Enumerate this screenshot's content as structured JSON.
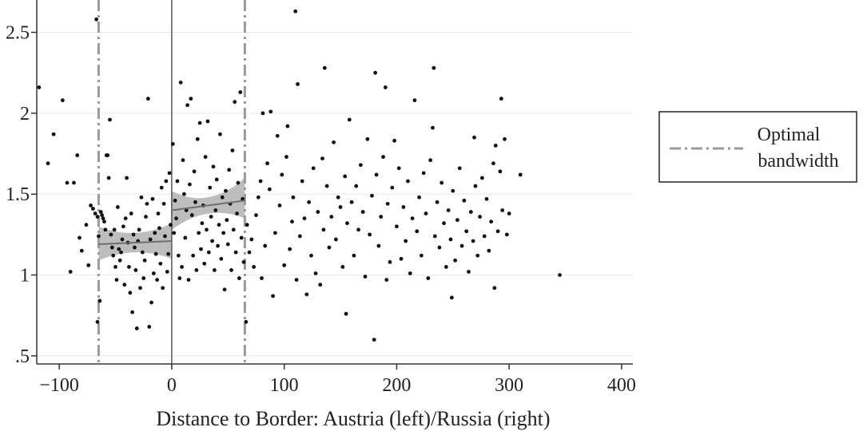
{
  "chart_data": {
    "type": "scatter",
    "xlabel": "Distance to Border: Austria (left)/Russia (right)",
    "ylabel": "",
    "xlim": [
      -120,
      410
    ],
    "ylim": [
      0.45,
      2.7
    ],
    "x_ticks": [
      {
        "value": -100,
        "label": "−100"
      },
      {
        "value": 0,
        "label": "0"
      },
      {
        "value": 100,
        "label": "100"
      },
      {
        "value": 200,
        "label": "200"
      },
      {
        "value": 300,
        "label": "300"
      },
      {
        "value": 400,
        "label": "400"
      }
    ],
    "y_ticks": [
      {
        "value": 0.5,
        "label": ".5"
      },
      {
        "value": 1,
        "label": "1"
      },
      {
        "value": 1.5,
        "label": "1.5"
      },
      {
        "value": 2,
        "label": "2"
      },
      {
        "value": 2.5,
        "label": "2.5"
      }
    ],
    "grid": true,
    "cutoff": 0,
    "bandwidth": [
      -65,
      65
    ],
    "legend": {
      "label_line1": "Optimal",
      "label_line2": "bandwidth",
      "position": "right"
    },
    "fits": [
      {
        "x": [
          -65,
          0
        ],
        "y": [
          1.19,
          1.21
        ],
        "ci_low": [
          1.09,
          1.1
        ],
        "ci_high": [
          1.3,
          1.32
        ],
        "ci_mid_halfwidth": 0.06
      },
      {
        "x": [
          0,
          65
        ],
        "y": [
          1.4,
          1.46
        ],
        "ci_low": [
          1.28,
          1.35
        ],
        "ci_high": [
          1.52,
          1.6
        ],
        "ci_mid_halfwidth": 0.05
      }
    ],
    "points": [
      [
        -118,
        2.16
      ],
      [
        -110,
        1.69
      ],
      [
        -105,
        1.87
      ],
      [
        -97,
        2.08
      ],
      [
        -93,
        1.57
      ],
      [
        -90,
        1.02
      ],
      [
        -87,
        1.57
      ],
      [
        -84,
        1.74
      ],
      [
        -82,
        1.23
      ],
      [
        -80,
        1.15
      ],
      [
        -76,
        1.31
      ],
      [
        -74,
        1.06
      ],
      [
        -72,
        1.43
      ],
      [
        -70,
        1.41
      ],
      [
        -68,
        1.38
      ],
      [
        -66,
        1.36
      ],
      [
        -66,
        0.71
      ],
      [
        -65,
        1.24
      ],
      [
        -67,
        2.58
      ],
      [
        -64,
        0.84
      ],
      [
        -63,
        1.39
      ],
      [
        -62,
        1.37
      ],
      [
        -61,
        1.35
      ],
      [
        -60,
        1.33
      ],
      [
        -59,
        1.28
      ],
      [
        -58,
        1.74
      ],
      [
        -57,
        1.74
      ],
      [
        -56,
        1.6
      ],
      [
        -55,
        1.96
      ],
      [
        -54,
        1.25
      ],
      [
        -53,
        1.17
      ],
      [
        -52,
        1.12
      ],
      [
        -51,
        1.28
      ],
      [
        -50,
        1.05
      ],
      [
        -49,
        0.97
      ],
      [
        -48,
        1.42
      ],
      [
        -47,
        1.16
      ],
      [
        -46,
        1.09
      ],
      [
        -45,
        1.14
      ],
      [
        -44,
        1.22
      ],
      [
        -43,
        1.3
      ],
      [
        -42,
        0.94
      ],
      [
        -41,
        1.35
      ],
      [
        -40,
        1.6
      ],
      [
        -39,
        1.2
      ],
      [
        -38,
        1.05
      ],
      [
        -37,
        0.89
      ],
      [
        -36,
        1.38
      ],
      [
        -35,
        0.77
      ],
      [
        -34,
        1.25
      ],
      [
        -33,
        1.17
      ],
      [
        -32,
        1.03
      ],
      [
        -31,
        0.67
      ],
      [
        -30,
        1.21
      ],
      [
        -29,
        1.28
      ],
      [
        -28,
        0.92
      ],
      [
        -27,
        1.48
      ],
      [
        -26,
        1.14
      ],
      [
        -25,
        0.98
      ],
      [
        -24,
        1.09
      ],
      [
        -23,
        1.36
      ],
      [
        -22,
        1.44
      ],
      [
        -21,
        2.09
      ],
      [
        -20,
        0.68
      ],
      [
        -19,
        1.22
      ],
      [
        -18,
        0.83
      ],
      [
        -17,
        1.47
      ],
      [
        -16,
        1.01
      ],
      [
        -15,
        1.26
      ],
      [
        -14,
        1.13
      ],
      [
        -13,
        0.97
      ],
      [
        -12,
        1.38
      ],
      [
        -11,
        1.29
      ],
      [
        -10,
        1.07
      ],
      [
        -9,
        1.54
      ],
      [
        -8,
        0.92
      ],
      [
        -7,
        1.44
      ],
      [
        -6,
        1.24
      ],
      [
        -5,
        1.58
      ],
      [
        -4,
        1.02
      ],
      [
        -3,
        1.13
      ],
      [
        -2,
        1.63
      ],
      [
        -1,
        1.31
      ],
      [
        1,
        1.81
      ],
      [
        2,
        1.26
      ],
      [
        3,
        1.46
      ],
      [
        4,
        1.35
      ],
      [
        5,
        1.58
      ],
      [
        6,
        1.12
      ],
      [
        7,
        0.98
      ],
      [
        8,
        2.19
      ],
      [
        9,
        1.05
      ],
      [
        10,
        1.71
      ],
      [
        11,
        1.5
      ],
      [
        12,
        1.23
      ],
      [
        13,
        1.4
      ],
      [
        14,
        2.05
      ],
      [
        15,
        0.97
      ],
      [
        16,
        1.56
      ],
      [
        17,
        2.09
      ],
      [
        18,
        1.37
      ],
      [
        19,
        1.12
      ],
      [
        20,
        1.64
      ],
      [
        21,
        1.45
      ],
      [
        22,
        1.03
      ],
      [
        23,
        1.84
      ],
      [
        24,
        1.26
      ],
      [
        25,
        1.94
      ],
      [
        26,
        1.16
      ],
      [
        27,
        1.32
      ],
      [
        28,
        1.43
      ],
      [
        29,
        1.07
      ],
      [
        30,
        1.73
      ],
      [
        31,
        1.28
      ],
      [
        32,
        1.95
      ],
      [
        33,
        1.14
      ],
      [
        34,
        1.54
      ],
      [
        35,
        1.36
      ],
      [
        36,
        1.21
      ],
      [
        37,
        1.67
      ],
      [
        38,
        1.03
      ],
      [
        39,
        1.4
      ],
      [
        40,
        1.59
      ],
      [
        41,
        1.18
      ],
      [
        42,
        1.31
      ],
      [
        43,
        1.87
      ],
      [
        44,
        1.1
      ],
      [
        45,
        1.48
      ],
      [
        46,
        1.26
      ],
      [
        47,
        0.91
      ],
      [
        48,
        1.52
      ],
      [
        49,
        1.34
      ],
      [
        50,
        1.19
      ],
      [
        51,
        1.65
      ],
      [
        52,
        1.44
      ],
      [
        53,
        1.03
      ],
      [
        54,
        1.77
      ],
      [
        55,
        1.28
      ],
      [
        56,
        2.07
      ],
      [
        57,
        1.14
      ],
      [
        58,
        1.38
      ],
      [
        59,
        1.57
      ],
      [
        60,
        0.98
      ],
      [
        61,
        2.13
      ],
      [
        62,
        1.23
      ],
      [
        63,
        1.47
      ],
      [
        64,
        1.08
      ],
      [
        66,
        0.71
      ],
      [
        67,
        1.31
      ],
      [
        69,
        1.14
      ],
      [
        71,
        1.22
      ],
      [
        73,
        1.05
      ],
      [
        75,
        1.37
      ],
      [
        77,
        1.48
      ],
      [
        79,
        1.58
      ],
      [
        80,
        0.98
      ],
      [
        81,
        2.0
      ],
      [
        83,
        1.18
      ],
      [
        85,
        1.69
      ],
      [
        87,
        1.53
      ],
      [
        88,
        2.01
      ],
      [
        90,
        0.87
      ],
      [
        92,
        1.26
      ],
      [
        94,
        1.86
      ],
      [
        96,
        1.43
      ],
      [
        98,
        1.62
      ],
      [
        100,
        1.06
      ],
      [
        102,
        1.73
      ],
      [
        103,
        1.92
      ],
      [
        105,
        1.16
      ],
      [
        107,
        1.33
      ],
      [
        108,
        1.48
      ],
      [
        110,
        2.63
      ],
      [
        111,
        0.97
      ],
      [
        112,
        2.18
      ],
      [
        114,
        1.24
      ],
      [
        116,
        1.58
      ],
      [
        118,
        1.35
      ],
      [
        120,
        0.88
      ],
      [
        122,
        1.45
      ],
      [
        124,
        1.12
      ],
      [
        126,
        1.66
      ],
      [
        128,
        1.01
      ],
      [
        130,
        1.39
      ],
      [
        132,
        0.94
      ],
      [
        134,
        1.72
      ],
      [
        135,
        1.28
      ],
      [
        136,
        2.28
      ],
      [
        138,
        1.55
      ],
      [
        140,
        1.17
      ],
      [
        142,
        1.36
      ],
      [
        144,
        1.82
      ],
      [
        146,
        1.22
      ],
      [
        148,
        1.48
      ],
      [
        150,
        1.42
      ],
      [
        152,
        1.05
      ],
      [
        154,
        1.61
      ],
      [
        155,
        0.76
      ],
      [
        156,
        1.32
      ],
      [
        158,
        1.96
      ],
      [
        160,
        1.45
      ],
      [
        162,
        1.12
      ],
      [
        164,
        1.55
      ],
      [
        166,
        1.28
      ],
      [
        168,
        1.68
      ],
      [
        170,
        1.39
      ],
      [
        172,
        0.99
      ],
      [
        174,
        1.84
      ],
      [
        176,
        1.25
      ],
      [
        178,
        1.49
      ],
      [
        180,
        0.6
      ],
      [
        181,
        2.25
      ],
      [
        182,
        1.62
      ],
      [
        184,
        1.18
      ],
      [
        186,
        1.36
      ],
      [
        188,
        1.73
      ],
      [
        190,
        2.16
      ],
      [
        191,
        0.97
      ],
      [
        192,
        1.44
      ],
      [
        194,
        1.08
      ],
      [
        196,
        1.54
      ],
      [
        198,
        1.83
      ],
      [
        200,
        1.3
      ],
      [
        202,
        1.66
      ],
      [
        204,
        1.1
      ],
      [
        206,
        1.42
      ],
      [
        208,
        1.21
      ],
      [
        210,
        1.58
      ],
      [
        212,
        1.01
      ],
      [
        214,
        1.35
      ],
      [
        216,
        2.08
      ],
      [
        218,
        1.27
      ],
      [
        220,
        1.48
      ],
      [
        222,
        1.12
      ],
      [
        224,
        1.63
      ],
      [
        226,
        1.38
      ],
      [
        228,
        0.98
      ],
      [
        230,
        1.71
      ],
      [
        232,
        1.91
      ],
      [
        233,
        2.28
      ],
      [
        234,
        1.24
      ],
      [
        236,
        1.45
      ],
      [
        238,
        1.17
      ],
      [
        240,
        1.57
      ],
      [
        242,
        1.32
      ],
      [
        244,
        1.05
      ],
      [
        246,
        1.4
      ],
      [
        248,
        1.22
      ],
      [
        249,
        0.86
      ],
      [
        250,
        1.52
      ],
      [
        252,
        1.09
      ],
      [
        254,
        1.34
      ],
      [
        256,
        1.66
      ],
      [
        258,
        1.18
      ],
      [
        260,
        1.46
      ],
      [
        262,
        1.27
      ],
      [
        264,
        1.02
      ],
      [
        266,
        1.39
      ],
      [
        268,
        1.21
      ],
      [
        269,
        1.85
      ],
      [
        270,
        1.55
      ],
      [
        272,
        1.12
      ],
      [
        274,
        1.36
      ],
      [
        276,
        1.6
      ],
      [
        278,
        1.24
      ],
      [
        280,
        1.47
      ],
      [
        282,
        1.15
      ],
      [
        284,
        1.33
      ],
      [
        286,
        1.69
      ],
      [
        287,
        0.92
      ],
      [
        288,
        1.8
      ],
      [
        290,
        1.27
      ],
      [
        292,
        1.64
      ],
      [
        293,
        2.09
      ],
      [
        294,
        1.4
      ],
      [
        296,
        1.84
      ],
      [
        298,
        1.25
      ],
      [
        300,
        1.38
      ],
      [
        310,
        1.62
      ],
      [
        345,
        1.0
      ]
    ]
  }
}
